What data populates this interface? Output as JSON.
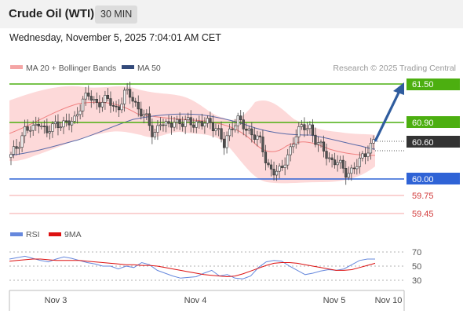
{
  "header": {
    "title": "Crude Oil (WTI)",
    "timeframe": "30 MIN",
    "datetime": "Wednesday, November 5, 2025 7:04:01 AM CET"
  },
  "legend": {
    "bb_label": "MA 20 + Bollinger Bands",
    "ma50_label": "MA 50",
    "credit": "Research © 2025 Trading Central"
  },
  "colors": {
    "bollinger_fill": "#fdd9d9",
    "ma20": "#f08080",
    "ma50": "#5a6aa8",
    "resistance": "#4caf10",
    "support": "#2f63d6",
    "target": "#f4a5a5",
    "arrow": "#2f5c9e",
    "price_tag": "#333333",
    "candle_up": "#777777",
    "candle_down": "#555555",
    "rsi": "#6688dd",
    "rsi_ma": "#dd1111"
  },
  "chart_data": {
    "type": "candlestick",
    "levels": [
      {
        "label": "61.50",
        "kind": "resistance"
      },
      {
        "label": "60.90",
        "kind": "resistance"
      },
      {
        "label": "60.60",
        "kind": "last"
      },
      {
        "label": "60.00",
        "kind": "pivot"
      },
      {
        "label": "59.75",
        "kind": "support"
      },
      {
        "label": "59.45",
        "kind": "support"
      }
    ],
    "x_ticks": [
      "Nov 3",
      "Nov 4",
      "Nov 5",
      "Nov 10"
    ],
    "price_path": [
      60.35,
      60.55,
      60.8,
      60.75,
      60.95,
      60.7,
      60.85,
      60.9,
      60.85,
      60.95,
      61.25,
      61.3,
      61.2,
      61.25,
      61.2,
      61.1,
      61.35,
      61.3,
      61.1,
      60.95,
      60.7,
      60.9,
      60.8,
      60.95,
      60.85,
      60.9,
      60.9,
      60.85,
      60.9,
      60.8,
      60.5,
      60.85,
      60.95,
      60.75,
      60.75,
      60.6,
      60.2,
      60.15,
      60.1,
      60.4,
      60.7,
      60.8,
      60.85,
      60.55,
      60.45,
      60.3,
      60.25,
      60.1,
      60.15,
      60.25,
      60.45,
      60.6
    ],
    "rsi": {
      "label": "RSI",
      "ma_label": "9MA",
      "ticks": [
        "70",
        "50",
        "30"
      ],
      "rsi_values": [
        60,
        62,
        64,
        61,
        58,
        56,
        60,
        63,
        61,
        58,
        55,
        53,
        50,
        50,
        46,
        50,
        48,
        55,
        52,
        44,
        40,
        36,
        33,
        34,
        35,
        40,
        44,
        36,
        38,
        33,
        32,
        36,
        48,
        56,
        58,
        57,
        50,
        44,
        38,
        40,
        43,
        45,
        44,
        46,
        52,
        58,
        60,
        60
      ],
      "ma_values": [
        57,
        58,
        59,
        60,
        60,
        59,
        58,
        58,
        58,
        58,
        57,
        56,
        55,
        54,
        53,
        52,
        52,
        51,
        51,
        50,
        48,
        46,
        44,
        42,
        40,
        38,
        37,
        36,
        35,
        36,
        39,
        43,
        47,
        51,
        54,
        55,
        55,
        54,
        52,
        50,
        48,
        46,
        44,
        44,
        45,
        48,
        51,
        54
      ]
    }
  }
}
